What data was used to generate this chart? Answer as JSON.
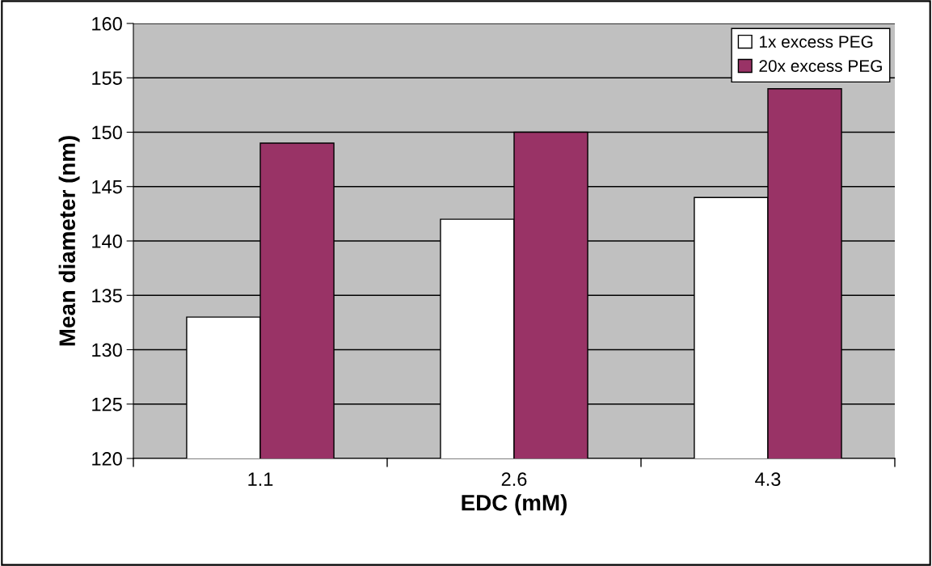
{
  "chart_data": {
    "type": "bar",
    "xlabel": "EDC (mM)",
    "ylabel": "Mean diameter (nm)",
    "categories": [
      "1.1",
      "2.6",
      "4.3"
    ],
    "series": [
      {
        "name": "1x excess PEG",
        "color": "#ffffff",
        "values": [
          133,
          142,
          144
        ]
      },
      {
        "name": "20x excess PEG",
        "color": "#993366",
        "values": [
          149,
          150,
          154
        ]
      }
    ],
    "ylim": [
      120,
      160
    ],
    "yticks": [
      120,
      125,
      130,
      135,
      140,
      145,
      150,
      155,
      160
    ],
    "grid": "y",
    "legend": "top right"
  }
}
